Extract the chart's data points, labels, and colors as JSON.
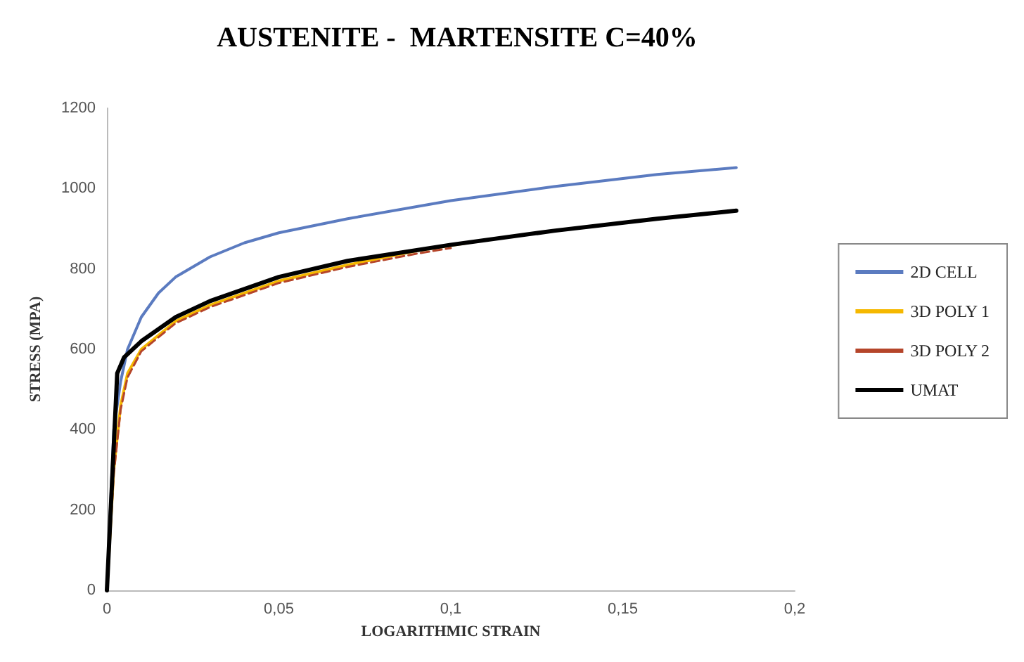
{
  "chart_data": {
    "type": "line",
    "title": "AUSTENITE -  MARTENSITE C=40%",
    "xlabel": "LOGARITHMIC STRAIN",
    "ylabel": "STRESS (MPA)",
    "xlim": [
      0,
      0.2
    ],
    "xticks": [
      0,
      {
        "value": 0.05,
        "label": "0,05"
      },
      {
        "value": 0.1,
        "label": "0,1"
      },
      {
        "value": 0.15,
        "label": "0,15"
      },
      {
        "value": 0.2,
        "label": "0,2"
      }
    ],
    "ylim": [
      0,
      1200
    ],
    "yticks": [
      0,
      200,
      400,
      600,
      800,
      1000,
      1200
    ],
    "grid": false,
    "legend": "right",
    "marker": "none",
    "series": [
      {
        "name": "2D CELL",
        "color": "#5b7bc0",
        "line_style": "solid",
        "x": [
          0,
          0.002,
          0.004,
          0.006,
          0.01,
          0.015,
          0.02,
          0.03,
          0.04,
          0.05,
          0.07,
          0.1,
          0.13,
          0.16,
          0.183
        ],
        "values": [
          0,
          400,
          520,
          600,
          680,
          740,
          780,
          830,
          865,
          890,
          925,
          970,
          1005,
          1035,
          1052
        ]
      },
      {
        "name": "3D POLY 1",
        "color": "#f5b800",
        "line_style": "solid",
        "x": [
          0,
          0.002,
          0.004,
          0.006,
          0.01,
          0.02,
          0.03,
          0.05,
          0.07,
          0.09,
          0.105
        ],
        "values": [
          0,
          300,
          460,
          540,
          600,
          670,
          710,
          770,
          810,
          845,
          865
        ]
      },
      {
        "name": "3D POLY 2",
        "color": "#b5452a",
        "line_style": "dashed",
        "x": [
          0,
          0.002,
          0.004,
          0.006,
          0.01,
          0.02,
          0.03,
          0.05,
          0.07,
          0.09,
          0.1
        ],
        "values": [
          0,
          290,
          450,
          530,
          595,
          665,
          705,
          765,
          805,
          838,
          852
        ]
      },
      {
        "name": "UMAT",
        "color": "#000000",
        "line_style": "solid",
        "x": [
          0,
          0.003,
          0.005,
          0.01,
          0.02,
          0.03,
          0.05,
          0.07,
          0.1,
          0.13,
          0.16,
          0.183
        ],
        "values": [
          0,
          540,
          580,
          620,
          680,
          720,
          780,
          820,
          860,
          895,
          925,
          945
        ]
      }
    ]
  }
}
